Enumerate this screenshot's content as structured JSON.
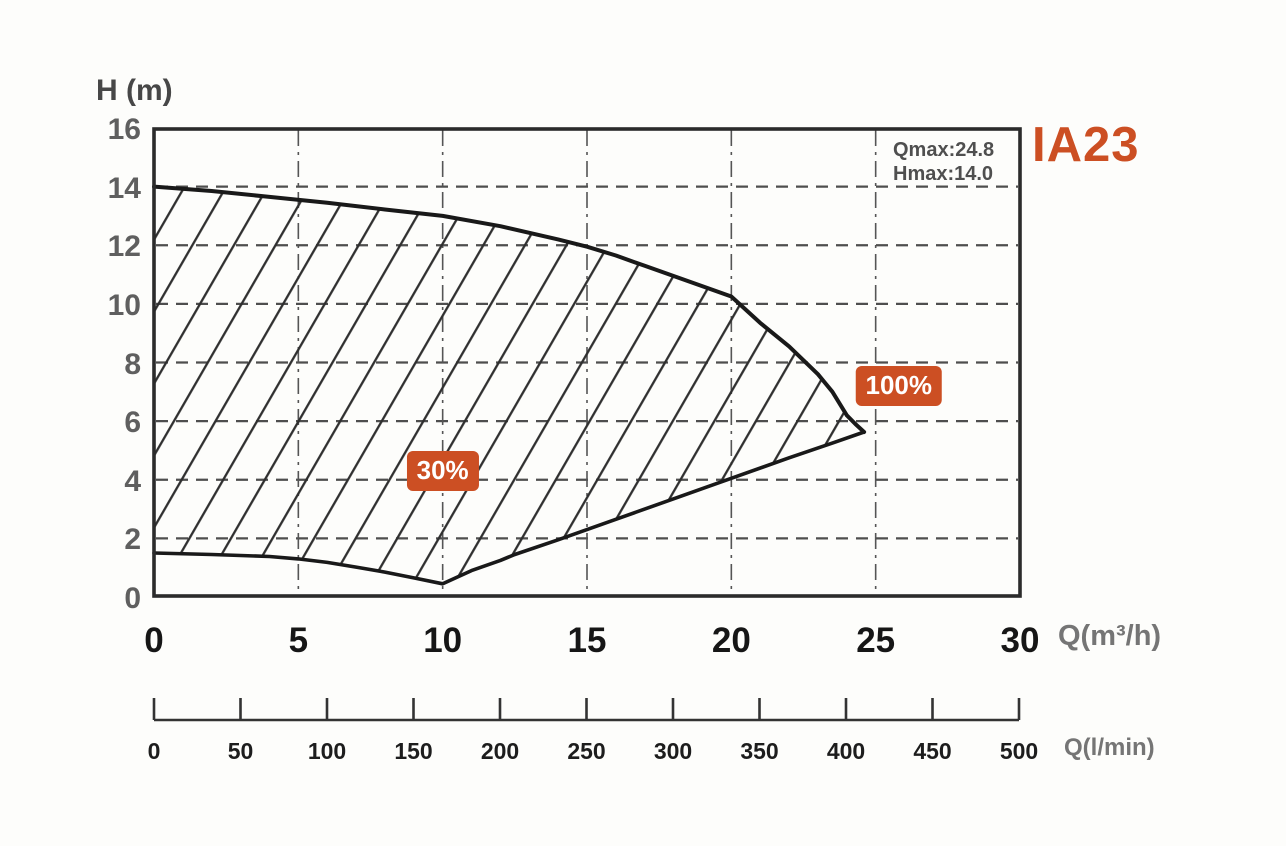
{
  "accent_color": "#cc4f23",
  "title": "IA23",
  "annotation": {
    "qmax_label": "Qmax:24.8",
    "hmax_label": "Hmax:14.0"
  },
  "badges": [
    {
      "label": "30%",
      "q": 10.0,
      "h": 4.3
    },
    {
      "label": "100%",
      "q": 25.8,
      "h": 7.2
    }
  ],
  "chart_data": {
    "type": "area",
    "title": "IA23",
    "qmax": 24.8,
    "hmax": 14.0,
    "grid": true,
    "x_axis": {
      "label": "Q(m³/h)",
      "range": [
        0,
        30
      ],
      "ticks": [
        0,
        5,
        10,
        15,
        20,
        25,
        30
      ]
    },
    "y_axis": {
      "label": "H (m)",
      "range": [
        0,
        16
      ],
      "ticks": [
        0,
        2,
        4,
        6,
        8,
        10,
        12,
        14,
        16
      ]
    },
    "secondary_x_axis": {
      "label": "Q(l/min)",
      "range": [
        0,
        500
      ],
      "ticks": [
        0,
        50,
        100,
        150,
        200,
        250,
        300,
        350,
        400,
        450,
        500
      ]
    },
    "series": [
      {
        "name": "upper-limit-curve",
        "points": [
          [
            0,
            14.0
          ],
          [
            2,
            13.85
          ],
          [
            4,
            13.65
          ],
          [
            6,
            13.45
          ],
          [
            8,
            13.22
          ],
          [
            10,
            13.0
          ],
          [
            12,
            12.65
          ],
          [
            14,
            12.2
          ],
          [
            15,
            11.95
          ],
          [
            16,
            11.65
          ],
          [
            17,
            11.3
          ],
          [
            18,
            10.95
          ],
          [
            19,
            10.6
          ],
          [
            20,
            10.25
          ],
          [
            21,
            9.35
          ],
          [
            22,
            8.55
          ],
          [
            23,
            7.6
          ],
          [
            23.5,
            7.0
          ],
          [
            24,
            6.2
          ],
          [
            24.3,
            5.9
          ],
          [
            24.6,
            5.63
          ]
        ]
      },
      {
        "name": "lower-limit-curve",
        "points": [
          [
            0,
            1.5
          ],
          [
            2,
            1.45
          ],
          [
            4,
            1.38
          ],
          [
            5,
            1.3
          ],
          [
            6,
            1.18
          ],
          [
            7,
            1.02
          ],
          [
            8,
            0.85
          ],
          [
            9,
            0.65
          ],
          [
            10,
            0.45
          ],
          [
            11,
            0.9
          ],
          [
            12,
            1.25
          ],
          [
            12.5,
            1.45
          ],
          [
            14,
            1.95
          ],
          [
            16,
            2.65
          ],
          [
            18,
            3.35
          ],
          [
            20,
            4.05
          ],
          [
            22,
            4.75
          ],
          [
            23.5,
            5.25
          ],
          [
            24.6,
            5.63
          ]
        ]
      }
    ]
  }
}
